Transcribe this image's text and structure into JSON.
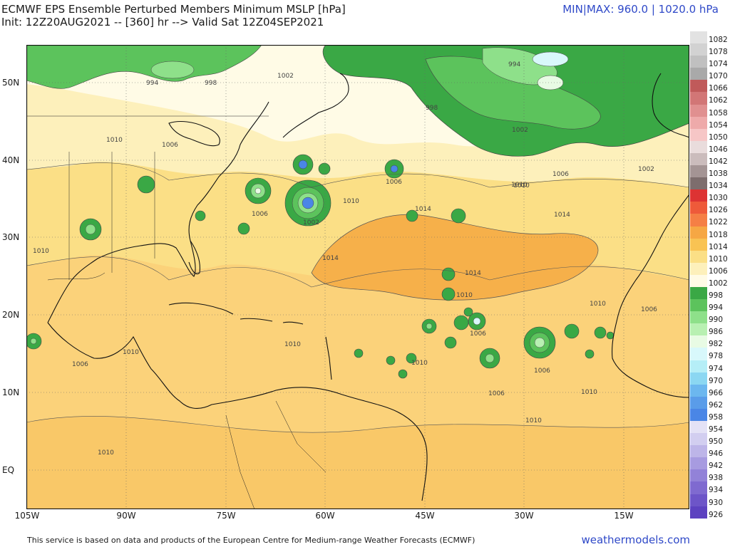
{
  "header": {
    "title": "ECMWF EPS Ensemble Perturbed Members Minimum MSLP [hPa]",
    "subtitle": "Init: 12Z20AUG2021 -- [360] hr --> Valid Sat 12Z04SEP2021",
    "minmax": "MIN|MAX: 960.0 | 1020.0 hPa"
  },
  "axes": {
    "lat_labels": [
      "50N",
      "40N",
      "30N",
      "20N",
      "10N",
      "EQ"
    ],
    "lon_labels": [
      "105W",
      "90W",
      "75W",
      "60W",
      "45W",
      "30W",
      "15W"
    ]
  },
  "colorbar": {
    "levels": [
      {
        "label": "1082",
        "color": "#e2e2e2"
      },
      {
        "label": "1078",
        "color": "#d2d2d2"
      },
      {
        "label": "1074",
        "color": "#c0c0c0"
      },
      {
        "label": "1070",
        "color": "#a9a9a9"
      },
      {
        "label": "1066",
        "color": "#c05a5a"
      },
      {
        "label": "1062",
        "color": "#d27676"
      },
      {
        "label": "1058",
        "color": "#e09090"
      },
      {
        "label": "1054",
        "color": "#eeaaaa"
      },
      {
        "label": "1050",
        "color": "#f6c6c6"
      },
      {
        "label": "1046",
        "color": "#e9dcdc"
      },
      {
        "label": "1042",
        "color": "#cbbcbc"
      },
      {
        "label": "1038",
        "color": "#a49494"
      },
      {
        "label": "1034",
        "color": "#7d6d6d"
      },
      {
        "label": "1030",
        "color": "#dd3333"
      },
      {
        "label": "1026",
        "color": "#ee5a3a"
      },
      {
        "label": "1022",
        "color": "#f57f45"
      },
      {
        "label": "1018",
        "color": "#f6a744"
      },
      {
        "label": "1014",
        "color": "#f9c353"
      },
      {
        "label": "1010",
        "color": "#fbdf86"
      },
      {
        "label": "1006",
        "color": "#fdf0bb"
      },
      {
        "label": "1002",
        "color": "#fffbe6"
      },
      {
        "label": "998",
        "color": "#3aa845"
      },
      {
        "label": "994",
        "color": "#5cc35c"
      },
      {
        "label": "990",
        "color": "#8ee08a"
      },
      {
        "label": "986",
        "color": "#b8f0b2"
      },
      {
        "label": "982",
        "color": "#e8fbe4"
      },
      {
        "label": "978",
        "color": "#d8f8fb"
      },
      {
        "label": "974",
        "color": "#b5eef7"
      },
      {
        "label": "970",
        "color": "#8bd7f2"
      },
      {
        "label": "966",
        "color": "#6cb7ef"
      },
      {
        "label": "962",
        "color": "#5a9ce9"
      },
      {
        "label": "958",
        "color": "#4a86e6"
      },
      {
        "label": "954",
        "color": "#e4e2f6"
      },
      {
        "label": "950",
        "color": "#d2cef0"
      },
      {
        "label": "946",
        "color": "#bdb5e8"
      },
      {
        "label": "942",
        "color": "#a79be0"
      },
      {
        "label": "938",
        "color": "#9282d8"
      },
      {
        "label": "934",
        "color": "#7f6ad0"
      },
      {
        "label": "930",
        "color": "#6d55c8"
      },
      {
        "label": "926",
        "color": "#5d42c0"
      }
    ]
  },
  "map": {
    "isobar_labels": [
      "994",
      "998",
      "1002",
      "1006",
      "1010",
      "1014",
      "994",
      "998",
      "1002",
      "1006",
      "1010",
      "1014",
      "1002",
      "1006",
      "1010",
      "1014",
      "1006",
      "1010",
      "1014",
      "1010",
      "1006",
      "1010",
      "1006",
      "1010",
      "1006",
      "1010",
      "1010",
      "1010",
      "1006",
      "1010",
      "1010",
      "1002",
      "1006",
      "1010"
    ]
  },
  "footer": {
    "credit": "This service is based on data and products of the European Centre for Medium-range Weather Forecasts (ECMWF)",
    "brand": "weathermodels.com"
  }
}
